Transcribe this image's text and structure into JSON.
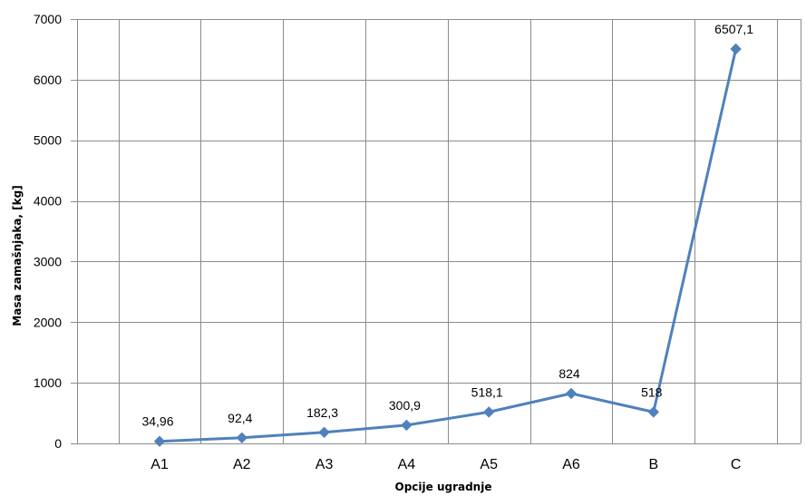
{
  "chart_data": {
    "type": "line",
    "title": "",
    "xlabel": "Opcije ugradnje",
    "ylabel": "Masa zamašnjaka, [kg]",
    "categories": [
      "A1",
      "A2",
      "A3",
      "A4",
      "A5",
      "A6",
      "B",
      "C"
    ],
    "series": [
      {
        "values": [
          34.96,
          92.4,
          182.3,
          300.9,
          518.1,
          824,
          518,
          6507.1
        ],
        "color": "#4f81bd"
      }
    ],
    "data_labels": [
      "34,96",
      "92,4",
      "182,3",
      "300,9",
      "518,1",
      "824",
      "518",
      "6507,1"
    ],
    "y_ticks": [
      0,
      1000,
      2000,
      3000,
      4000,
      5000,
      6000,
      7000
    ],
    "ylim": [
      0,
      7000
    ],
    "grid": true,
    "legend": "none",
    "marker": "diamond"
  }
}
